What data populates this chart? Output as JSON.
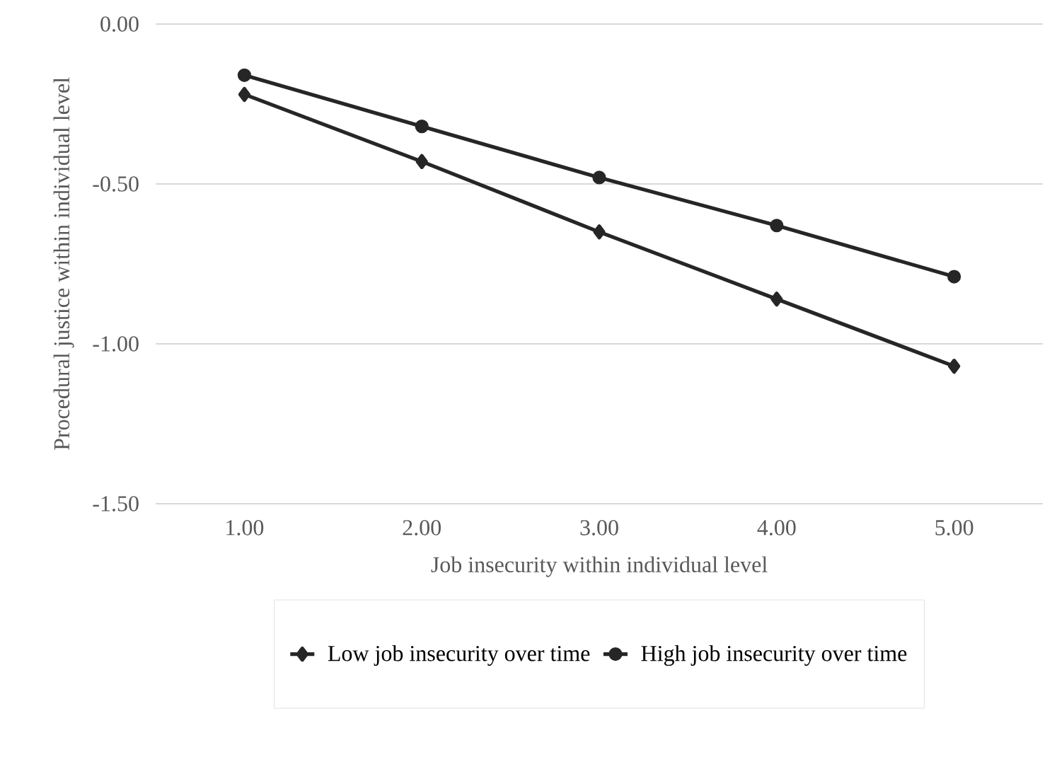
{
  "chart_data": {
    "type": "line",
    "xlabel": "Job insecurity within individual level",
    "ylabel": "Procedural justice within individual level",
    "categories": [
      "1.00",
      "2.00",
      "3.00",
      "4.00",
      "5.00"
    ],
    "series": [
      {
        "name": "Low job insecurity over time",
        "color": "#262626",
        "marker": "diamond",
        "values": [
          -0.22,
          -0.43,
          -0.65,
          -0.86,
          -1.07
        ]
      },
      {
        "name": "High job insecurity over time",
        "color": "#262626",
        "marker": "circle",
        "values": [
          -0.16,
          -0.32,
          -0.48,
          -0.63,
          -0.79
        ]
      }
    ],
    "ylim": [
      -1.5,
      0
    ],
    "yticks": [
      {
        "value": -1.5,
        "label": "-1.50"
      },
      {
        "value": -1.0,
        "label": "-1.00"
      },
      {
        "value": -0.5,
        "label": "-0.50"
      },
      {
        "value": 0,
        "label": "0.00"
      }
    ],
    "grid": "y",
    "legend": "bottom",
    "line_style": "solid"
  }
}
